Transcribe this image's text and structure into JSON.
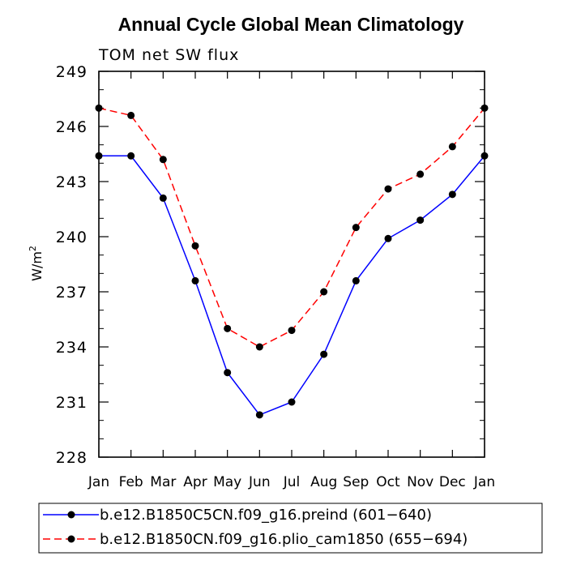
{
  "chart_data": {
    "type": "line",
    "title": "Annual Cycle Global Mean Climatology",
    "subtitle": "TOM net SW flux",
    "xlabel": "",
    "ylabel": "W/m",
    "ylabel_superscript": "2",
    "ylim": [
      228,
      249
    ],
    "yticks": [
      228,
      231,
      234,
      237,
      240,
      243,
      246,
      249
    ],
    "categories": [
      "Jan",
      "Feb",
      "Mar",
      "Apr",
      "May",
      "Jun",
      "Jul",
      "Aug",
      "Sep",
      "Oct",
      "Nov",
      "Dec",
      "Jan"
    ],
    "grid": false,
    "legend_position": "bottom",
    "series": [
      {
        "name": "b.e12.B1850C5CN.f09_g16.preind (601−640)",
        "color": "#0000ff",
        "dash": "solid",
        "values": [
          244.4,
          244.4,
          242.1,
          237.6,
          232.6,
          230.3,
          231.0,
          233.6,
          237.6,
          239.9,
          240.9,
          242.3,
          244.4
        ]
      },
      {
        "name": "b.e12.B1850CN.f09_g16.plio_cam1850 (655−694)",
        "color": "#ff0000",
        "dash": "dashed",
        "values": [
          247.0,
          246.6,
          244.2,
          239.5,
          235.0,
          234.0,
          234.9,
          237.0,
          240.5,
          242.6,
          243.4,
          244.9,
          247.0
        ]
      }
    ]
  }
}
